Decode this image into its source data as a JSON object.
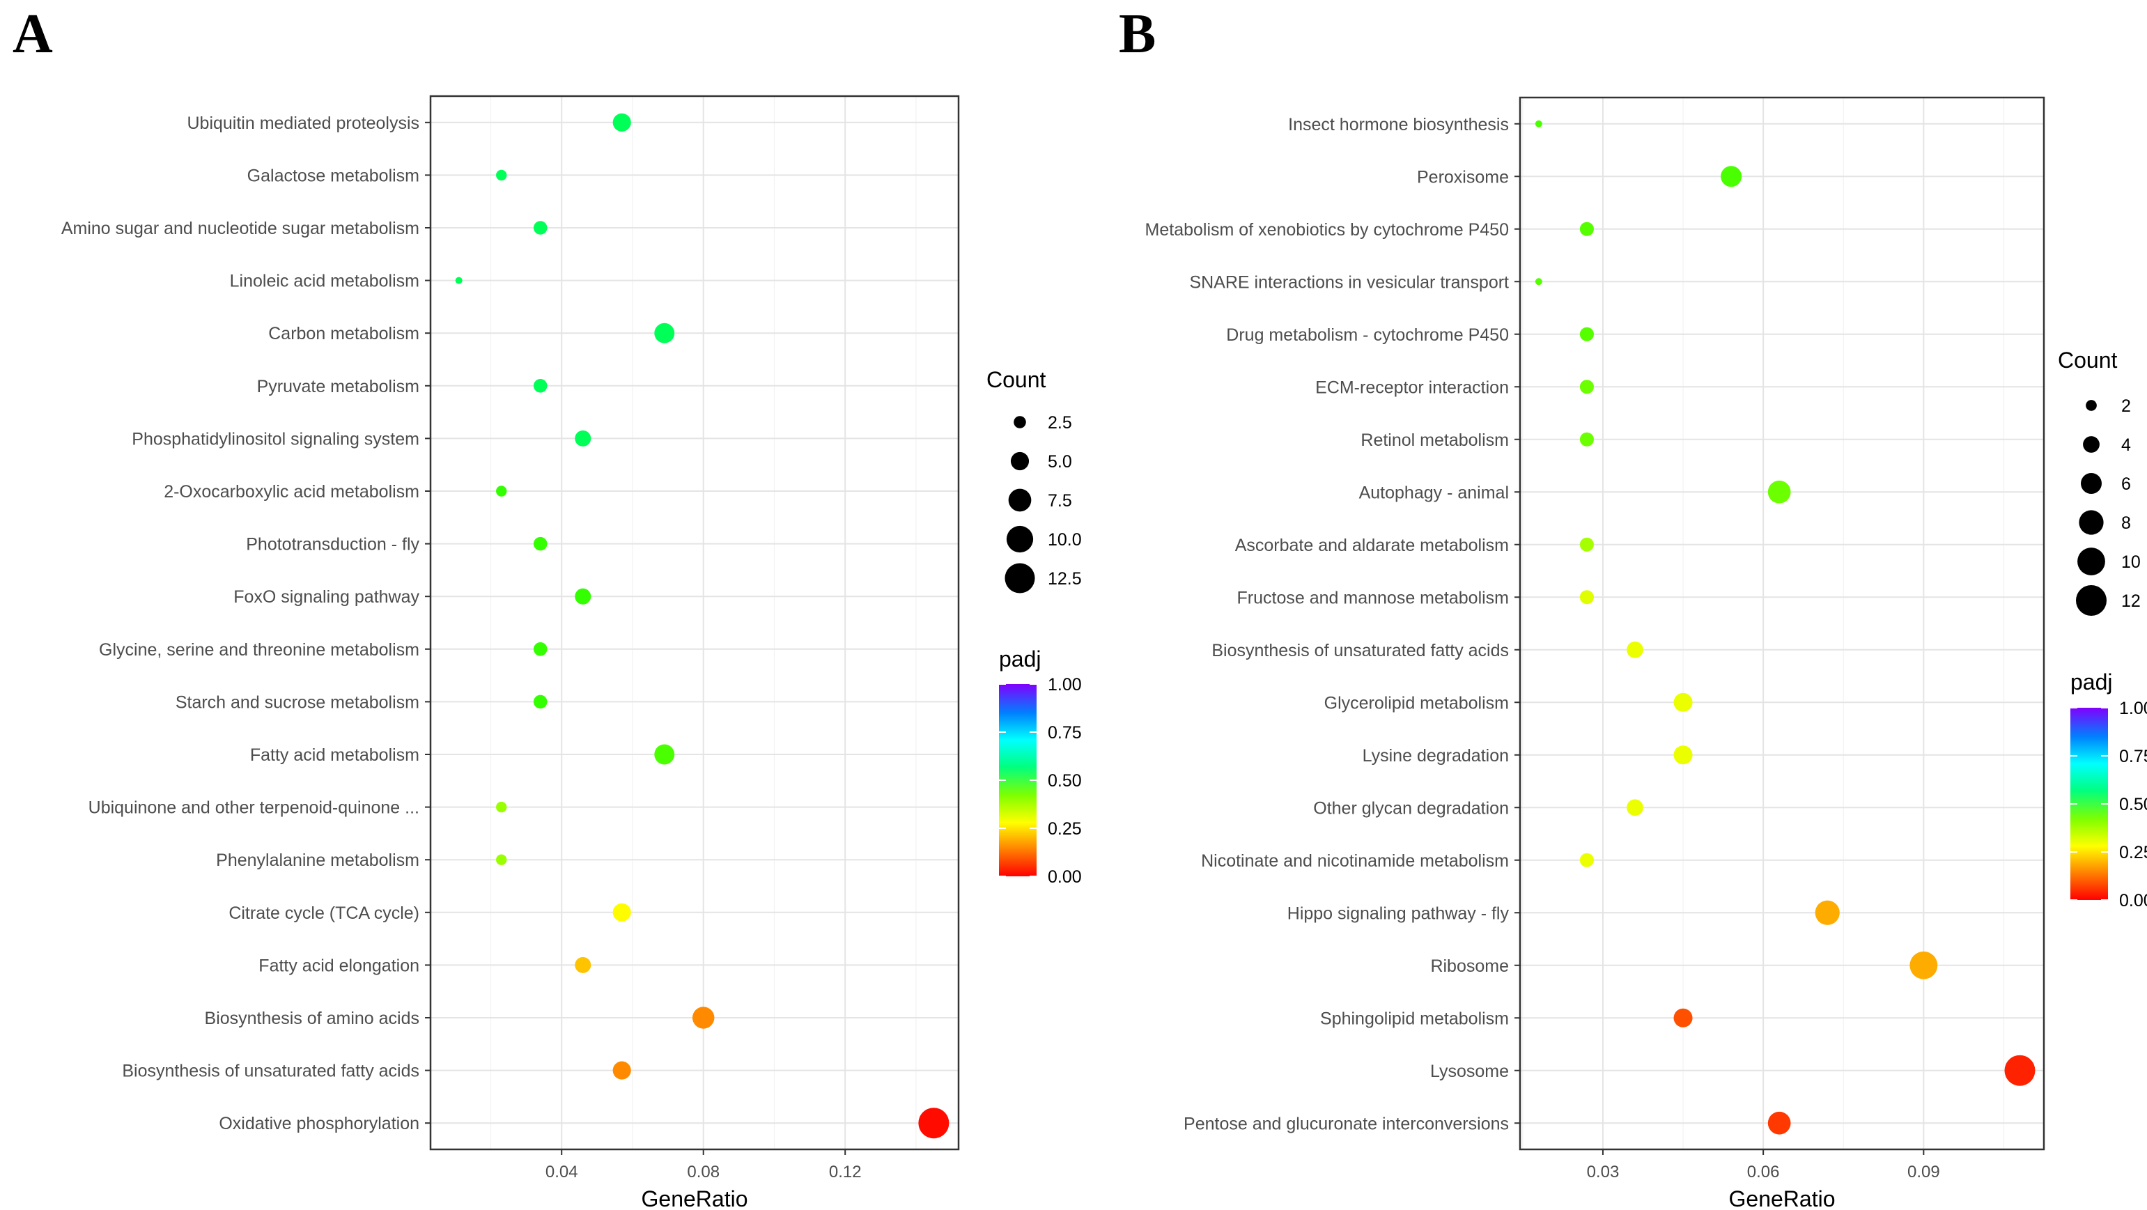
{
  "colors": {
    "padj_gradient": [
      "#ff0000",
      "#ff8000",
      "#ffff00",
      "#80ff00",
      "#00ff80",
      "#00ffff",
      "#0080ff",
      "#8000ff"
    ],
    "frame": "#333333",
    "grid": "#e4e4e4"
  },
  "chart_data": [
    {
      "panel": "A",
      "type": "scatter",
      "title": "",
      "xlabel": "GeneRatio",
      "ylabel": "",
      "xlim": [
        0.003,
        0.152
      ],
      "x_ticks": [
        0.04,
        0.08,
        0.12
      ],
      "x_tick_labels": [
        "0.04",
        "0.08",
        "0.12"
      ],
      "grid": true,
      "legend_placement": "right",
      "size_legend": {
        "title": "Count",
        "values": [
          2.5,
          5.0,
          7.5,
          10.0,
          12.5
        ],
        "labels": [
          "2.5",
          "5.0",
          "7.5",
          "10.0",
          "12.5"
        ],
        "range": [
          1,
          13
        ]
      },
      "color_legend": {
        "title": "padj",
        "ticks": [
          "1.00",
          "0.75",
          "0.50",
          "0.25",
          "0.00"
        ],
        "range": [
          0,
          1
        ]
      },
      "points": [
        {
          "term": "Ubiquitin mediated proteolysis",
          "gene_ratio": 0.057,
          "count": 5,
          "padj": 0.52
        },
        {
          "term": "Galactose metabolism",
          "gene_ratio": 0.023,
          "count": 2,
          "padj": 0.52
        },
        {
          "term": "Amino sugar and nucleotide sugar metabolism",
          "gene_ratio": 0.034,
          "count": 3,
          "padj": 0.52
        },
        {
          "term": "Linoleic acid metabolism",
          "gene_ratio": 0.011,
          "count": 1,
          "padj": 0.52
        },
        {
          "term": "Carbon metabolism",
          "gene_ratio": 0.069,
          "count": 6,
          "padj": 0.52
        },
        {
          "term": "Pyruvate metabolism",
          "gene_ratio": 0.034,
          "count": 3,
          "padj": 0.52
        },
        {
          "term": "Phosphatidylinositol signaling system",
          "gene_ratio": 0.046,
          "count": 4,
          "padj": 0.52
        },
        {
          "term": "2-Oxocarboxylic acid metabolism",
          "gene_ratio": 0.023,
          "count": 2,
          "padj": 0.4
        },
        {
          "term": "Phototransduction - fly",
          "gene_ratio": 0.034,
          "count": 3,
          "padj": 0.4
        },
        {
          "term": "FoxO signaling pathway",
          "gene_ratio": 0.046,
          "count": 4,
          "padj": 0.4
        },
        {
          "term": "Glycine, serine and threonine metabolism",
          "gene_ratio": 0.034,
          "count": 3,
          "padj": 0.4
        },
        {
          "term": "Starch and sucrose metabolism",
          "gene_ratio": 0.034,
          "count": 3,
          "padj": 0.4
        },
        {
          "term": "Fatty acid metabolism",
          "gene_ratio": 0.069,
          "count": 6,
          "padj": 0.38
        },
        {
          "term": "Ubiquinone and other terpenoid-quinone ...",
          "gene_ratio": 0.023,
          "count": 2,
          "padj": 0.31
        },
        {
          "term": "Phenylalanine metabolism",
          "gene_ratio": 0.023,
          "count": 2,
          "padj": 0.31
        },
        {
          "term": "Citrate cycle (TCA cycle)",
          "gene_ratio": 0.057,
          "count": 5,
          "padj": 0.22
        },
        {
          "term": "Fatty acid elongation",
          "gene_ratio": 0.046,
          "count": 4,
          "padj": 0.17
        },
        {
          "term": "Biosynthesis of amino acids",
          "gene_ratio": 0.08,
          "count": 7,
          "padj": 0.12
        },
        {
          "term": "Biosynthesis of unsaturated fatty acids",
          "gene_ratio": 0.057,
          "count": 5,
          "padj": 0.12
        },
        {
          "term": "Oxidative phosphorylation",
          "gene_ratio": 0.145,
          "count": 13,
          "padj": 0.01
        }
      ]
    },
    {
      "panel": "B",
      "type": "scatter",
      "title": "",
      "xlabel": "GeneRatio",
      "ylabel": "",
      "xlim": [
        0.0145,
        0.1125
      ],
      "x_ticks": [
        0.03,
        0.06,
        0.09
      ],
      "x_tick_labels": [
        "0.03",
        "0.06",
        "0.09"
      ],
      "grid": true,
      "legend_placement": "right",
      "size_legend": {
        "title": "Count",
        "values": [
          2,
          4,
          6,
          8,
          10,
          12
        ],
        "labels": [
          "2",
          "4",
          "6",
          "8",
          "10",
          "12"
        ],
        "range": [
          1,
          12
        ]
      },
      "color_legend": {
        "title": "padj",
        "ticks": [
          "1.00",
          "0.75",
          "0.50",
          "0.25",
          "0.00"
        ],
        "range": [
          0,
          1
        ]
      },
      "points": [
        {
          "term": "Insect hormone biosynthesis",
          "gene_ratio": 0.018,
          "count": 1,
          "padj": 0.38
        },
        {
          "term": "Peroxisome",
          "gene_ratio": 0.054,
          "count": 6,
          "padj": 0.38
        },
        {
          "term": "Metabolism of xenobiotics by cytochrome P450",
          "gene_ratio": 0.027,
          "count": 3,
          "padj": 0.37
        },
        {
          "term": "SNARE interactions in vesicular transport",
          "gene_ratio": 0.018,
          "count": 1,
          "padj": 0.37
        },
        {
          "term": "Drug metabolism - cytochrome P450",
          "gene_ratio": 0.027,
          "count": 3,
          "padj": 0.37
        },
        {
          "term": "ECM-receptor interaction",
          "gene_ratio": 0.027,
          "count": 3,
          "padj": 0.35
        },
        {
          "term": "Retinol metabolism",
          "gene_ratio": 0.027,
          "count": 3,
          "padj": 0.35
        },
        {
          "term": "Autophagy - animal",
          "gene_ratio": 0.063,
          "count": 7,
          "padj": 0.35
        },
        {
          "term": "Ascorbate and aldarate metabolism",
          "gene_ratio": 0.027,
          "count": 3,
          "padj": 0.3
        },
        {
          "term": "Fructose and mannose metabolism",
          "gene_ratio": 0.027,
          "count": 3,
          "padj": 0.25
        },
        {
          "term": "Biosynthesis of unsaturated fatty acids",
          "gene_ratio": 0.036,
          "count": 4,
          "padj": 0.24
        },
        {
          "term": "Glycerolipid metabolism",
          "gene_ratio": 0.045,
          "count": 5,
          "padj": 0.24
        },
        {
          "term": "Lysine degradation",
          "gene_ratio": 0.045,
          "count": 5,
          "padj": 0.24
        },
        {
          "term": "Other glycan degradation",
          "gene_ratio": 0.036,
          "count": 4,
          "padj": 0.24
        },
        {
          "term": "Nicotinate and nicotinamide metabolism",
          "gene_ratio": 0.027,
          "count": 3,
          "padj": 0.24
        },
        {
          "term": "Hippo signaling pathway - fly",
          "gene_ratio": 0.072,
          "count": 8,
          "padj": 0.15
        },
        {
          "term": "Ribosome",
          "gene_ratio": 0.09,
          "count": 10,
          "padj": 0.15
        },
        {
          "term": "Sphingolipid metabolism",
          "gene_ratio": 0.045,
          "count": 5,
          "padj": 0.07
        },
        {
          "term": "Lysosome",
          "gene_ratio": 0.108,
          "count": 12,
          "padj": 0.03
        },
        {
          "term": "Pentose and glucuronate interconversions",
          "gene_ratio": 0.063,
          "count": 7,
          "padj": 0.05
        }
      ]
    }
  ]
}
